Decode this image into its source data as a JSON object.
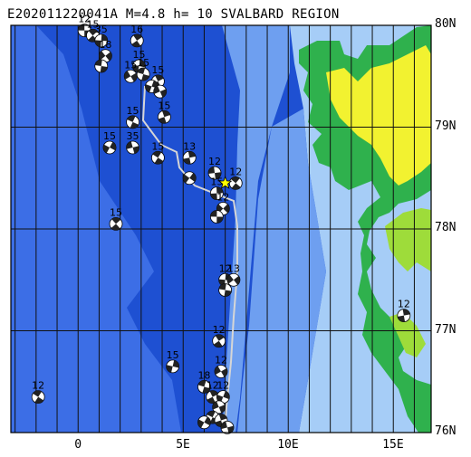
{
  "title": "E202011220041A M=4.8 h= 10 SVALBARD REGION",
  "x_axis": {
    "ticks": [
      {
        "lon": 0,
        "label": "0"
      },
      {
        "lon": 5,
        "label": "5E"
      },
      {
        "lon": 10,
        "label": "10E"
      },
      {
        "lon": 15,
        "label": "15E"
      }
    ]
  },
  "y_axis": {
    "ticks": [
      {
        "lat": 80,
        "label": "80N"
      },
      {
        "lat": 79,
        "label": "79N"
      },
      {
        "lat": 78,
        "label": "78N"
      },
      {
        "lat": 77,
        "label": "77N"
      },
      {
        "lat": 76,
        "label": "76N"
      }
    ]
  },
  "extent": {
    "lon_min": -3.2,
    "lon_max": 16.8,
    "lat_min": 76,
    "lat_max": 80
  },
  "colors": {
    "deep_sea": "#1e50d2",
    "mid_sea": "#3c6ee6",
    "shelf": "#6e9ff0",
    "shallow": "#a6cdf7",
    "land_low": "#2fb14d",
    "land_mid": "#9edc3a",
    "land_high": "#f2f230",
    "grid": "#111111",
    "epicenter": "#ffff00"
  },
  "epicenter": {
    "lon": 7.0,
    "lat": 78.45
  },
  "events": [
    {
      "lon": 0.3,
      "lat": 79.95,
      "label": "12"
    },
    {
      "lon": 0.7,
      "lat": 79.9,
      "label": "15"
    },
    {
      "lon": 1.1,
      "lat": 79.85,
      "label": "35"
    },
    {
      "lon": 1.3,
      "lat": 79.7,
      "label": "18"
    },
    {
      "lon": 1.1,
      "lat": 79.6,
      "label": ""
    },
    {
      "lon": 2.8,
      "lat": 79.85,
      "label": "16"
    },
    {
      "lon": 2.9,
      "lat": 79.6,
      "label": "15"
    },
    {
      "lon": 2.5,
      "lat": 79.5,
      "label": "15"
    },
    {
      "lon": 3.1,
      "lat": 79.52,
      "label": "15"
    },
    {
      "lon": 3.8,
      "lat": 79.45,
      "label": "15"
    },
    {
      "lon": 3.5,
      "lat": 79.4,
      "label": ""
    },
    {
      "lon": 3.9,
      "lat": 79.35,
      "label": ""
    },
    {
      "lon": 2.6,
      "lat": 79.05,
      "label": "15"
    },
    {
      "lon": 4.1,
      "lat": 79.1,
      "label": "15"
    },
    {
      "lon": 1.5,
      "lat": 78.8,
      "label": "15"
    },
    {
      "lon": 2.6,
      "lat": 78.8,
      "label": "35"
    },
    {
      "lon": 3.8,
      "lat": 78.7,
      "label": "15"
    },
    {
      "lon": 5.3,
      "lat": 78.7,
      "label": "13"
    },
    {
      "lon": 5.3,
      "lat": 78.5,
      "label": ""
    },
    {
      "lon": 6.5,
      "lat": 78.55,
      "label": "12"
    },
    {
      "lon": 7.5,
      "lat": 78.45,
      "label": "12"
    },
    {
      "lon": 6.6,
      "lat": 78.35,
      "label": "15"
    },
    {
      "lon": 6.9,
      "lat": 78.2,
      "label": "12"
    },
    {
      "lon": 6.6,
      "lat": 78.12,
      "label": ""
    },
    {
      "lon": 1.8,
      "lat": 78.05,
      "label": "15"
    },
    {
      "lon": 7.0,
      "lat": 77.5,
      "label": "12"
    },
    {
      "lon": 7.4,
      "lat": 77.5,
      "label": "13"
    },
    {
      "lon": 7.0,
      "lat": 77.4,
      "label": ""
    },
    {
      "lon": 6.7,
      "lat": 76.9,
      "label": "12"
    },
    {
      "lon": 4.5,
      "lat": 76.65,
      "label": "15"
    },
    {
      "lon": 6.8,
      "lat": 76.6,
      "label": "12"
    },
    {
      "lon": 6.0,
      "lat": 76.45,
      "label": "18"
    },
    {
      "lon": 6.4,
      "lat": 76.35,
      "label": "12"
    },
    {
      "lon": 6.9,
      "lat": 76.35,
      "label": "12"
    },
    {
      "lon": 6.7,
      "lat": 76.25,
      "label": ""
    },
    {
      "lon": 6.4,
      "lat": 76.15,
      "label": ""
    },
    {
      "lon": 6.8,
      "lat": 76.12,
      "label": ""
    },
    {
      "lon": 6.0,
      "lat": 76.1,
      "label": ""
    },
    {
      "lon": 7.1,
      "lat": 76.05,
      "label": ""
    },
    {
      "lon": -1.9,
      "lat": 76.35,
      "label": "12"
    },
    {
      "lon": 15.5,
      "lat": 77.15,
      "label": "12"
    }
  ]
}
